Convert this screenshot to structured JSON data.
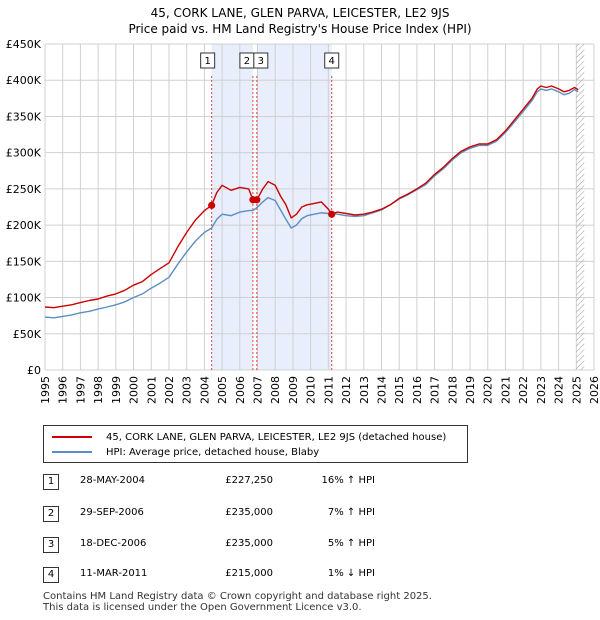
{
  "title_line1": "45, CORK LANE, GLEN PARVA, LEICESTER, LE2 9JS",
  "title_line2": "Price paid vs. HM Land Registry's House Price Index (HPI)",
  "colors": {
    "property": "#cc0000",
    "hpi": "#5b8ec4",
    "shade": "#e8eefb",
    "grid": "#d0d0d0",
    "marker_line": "#dd4444"
  },
  "legend": {
    "property_label": "45, CORK LANE, GLEN PARVA, LEICESTER, LE2 9JS (detached house)",
    "hpi_label": "HPI: Average price, detached house, Blaby"
  },
  "transactions": [
    {
      "num": "1",
      "date": "28-MAY-2004",
      "price": "£227,250",
      "hpi": "16% ↑ HPI"
    },
    {
      "num": "2",
      "date": "29-SEP-2006",
      "price": "£235,000",
      "hpi": "7% ↑ HPI"
    },
    {
      "num": "3",
      "date": "18-DEC-2006",
      "price": "£235,000",
      "hpi": "5% ↑ HPI"
    },
    {
      "num": "4",
      "date": "11-MAR-2011",
      "price": "£215,000",
      "hpi": "1% ↓ HPI"
    }
  ],
  "footer_line1": "Contains HM Land Registry data © Crown copyright and database right 2025.",
  "footer_line2": "This data is licensed under the Open Government Licence v3.0.",
  "chart_data": {
    "type": "line",
    "title": "45, CORK LANE, GLEN PARVA, LEICESTER, LE2 9JS",
    "subtitle": "Price paid vs. HM Land Registry's House Price Index (HPI)",
    "xlabel": "",
    "ylabel": "",
    "xlim": [
      1995,
      2026
    ],
    "ylim": [
      0,
      450000
    ],
    "grid": true,
    "legend_position": "bottom",
    "x_ticks": [
      1995,
      1996,
      1997,
      1998,
      1999,
      2000,
      2001,
      2002,
      2003,
      2004,
      2005,
      2006,
      2007,
      2008,
      2009,
      2010,
      2011,
      2012,
      2013,
      2014,
      2015,
      2016,
      2017,
      2018,
      2019,
      2020,
      2021,
      2022,
      2023,
      2024,
      2025,
      2026
    ],
    "y_ticks": [
      {
        "value": 0,
        "label": "£0"
      },
      {
        "value": 50000,
        "label": "£50K"
      },
      {
        "value": 100000,
        "label": "£100K"
      },
      {
        "value": 150000,
        "label": "£150K"
      },
      {
        "value": 200000,
        "label": "£200K"
      },
      {
        "value": 250000,
        "label": "£250K"
      },
      {
        "value": 300000,
        "label": "£300K"
      },
      {
        "value": 350000,
        "label": "£350K"
      },
      {
        "value": 400000,
        "label": "£400K"
      },
      {
        "value": 450000,
        "label": "£450K"
      }
    ],
    "shaded_ranges": [
      [
        2004.41,
        2006.74
      ],
      [
        2006.96,
        2011.19
      ]
    ],
    "future_hatch_start": 2025.0,
    "sales": [
      {
        "label": "1",
        "x": 2004.41,
        "y": 227250
      },
      {
        "label": "2",
        "x": 2006.74,
        "y": 235000
      },
      {
        "label": "3",
        "x": 2006.96,
        "y": 235000
      },
      {
        "label": "4",
        "x": 2011.19,
        "y": 215000
      }
    ],
    "series": [
      {
        "name": "45, CORK LANE, GLEN PARVA, LEICESTER, LE2 9JS (detached house)",
        "x": [
          1995,
          1995.5,
          1996,
          1996.5,
          1997,
          1997.5,
          1998,
          1998.5,
          1999,
          1999.5,
          2000,
          2000.5,
          2001,
          2001.5,
          2002,
          2002.5,
          2003,
          2003.5,
          2004,
          2004.41,
          2004.7,
          2005,
          2005.5,
          2006,
          2006.5,
          2006.74,
          2006.96,
          2007.3,
          2007.6,
          2008,
          2008.3,
          2008.6,
          2008.9,
          2009.2,
          2009.5,
          2009.8,
          2010.2,
          2010.6,
          2011,
          2011.19,
          2011.5,
          2012,
          2012.5,
          2013,
          2013.5,
          2014,
          2014.5,
          2015,
          2015.5,
          2016,
          2016.5,
          2017,
          2017.5,
          2018,
          2018.5,
          2019,
          2019.5,
          2020,
          2020.5,
          2021,
          2021.5,
          2022,
          2022.5,
          2022.8,
          2023,
          2023.3,
          2023.6,
          2024,
          2024.3,
          2024.6,
          2024.9,
          2025.1
        ],
        "y": [
          87000,
          86000,
          88000,
          90000,
          93000,
          96000,
          98000,
          102000,
          105000,
          110000,
          117000,
          122000,
          132000,
          140000,
          148000,
          170000,
          190000,
          207000,
          220000,
          227250,
          245000,
          255000,
          248000,
          252000,
          250000,
          235000,
          235000,
          250000,
          260000,
          255000,
          240000,
          228000,
          210000,
          215000,
          225000,
          228000,
          230000,
          232000,
          222000,
          215000,
          218000,
          216000,
          214000,
          215000,
          218000,
          222000,
          228000,
          237000,
          243000,
          250000,
          258000,
          270000,
          280000,
          292000,
          302000,
          308000,
          312000,
          312000,
          318000,
          330000,
          345000,
          360000,
          375000,
          388000,
          392000,
          390000,
          392000,
          388000,
          384000,
          386000,
          390000,
          387000
        ]
      },
      {
        "name": "HPI: Average price, detached house, Blaby",
        "x": [
          1995,
          1995.5,
          1996,
          1996.5,
          1997,
          1997.5,
          1998,
          1998.5,
          1999,
          1999.5,
          2000,
          2000.5,
          2001,
          2001.5,
          2002,
          2002.5,
          2003,
          2003.5,
          2004,
          2004.41,
          2004.7,
          2005,
          2005.5,
          2006,
          2006.5,
          2006.74,
          2006.96,
          2007.3,
          2007.6,
          2008,
          2008.3,
          2008.6,
          2008.9,
          2009.2,
          2009.5,
          2009.8,
          2010.2,
          2010.6,
          2011,
          2011.19,
          2011.5,
          2012,
          2012.5,
          2013,
          2013.5,
          2014,
          2014.5,
          2015,
          2015.5,
          2016,
          2016.5,
          2017,
          2017.5,
          2018,
          2018.5,
          2019,
          2019.5,
          2020,
          2020.5,
          2021,
          2021.5,
          2022,
          2022.5,
          2022.8,
          2023,
          2023.3,
          2023.6,
          2024,
          2024.3,
          2024.6,
          2024.9,
          2025.1
        ],
        "y": [
          73000,
          72000,
          74000,
          76000,
          79000,
          81000,
          84000,
          87000,
          90000,
          94000,
          100000,
          105000,
          113000,
          120000,
          128000,
          146000,
          163000,
          178000,
          190000,
          196000,
          208000,
          215000,
          213000,
          218000,
          220000,
          220000,
          224000,
          232000,
          238000,
          234000,
          221000,
          208000,
          196000,
          200000,
          209000,
          213000,
          215000,
          217000,
          216000,
          217000,
          215000,
          213000,
          212000,
          213000,
          217000,
          221000,
          228000,
          236000,
          242000,
          249000,
          256000,
          268000,
          278000,
          290000,
          300000,
          306000,
          310000,
          310000,
          316000,
          328000,
          342000,
          357000,
          372000,
          384000,
          388000,
          386000,
          388000,
          384000,
          380000,
          382000,
          387000,
          384000
        ]
      }
    ]
  }
}
